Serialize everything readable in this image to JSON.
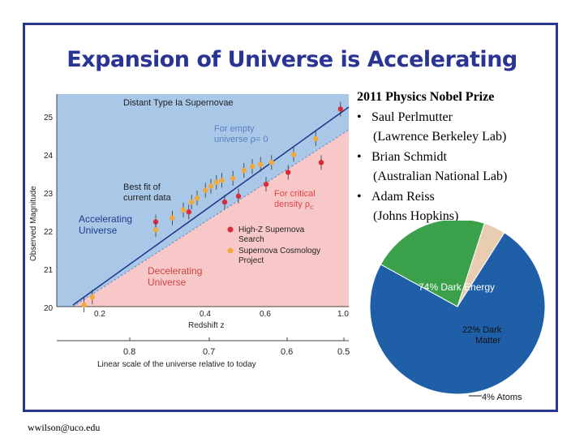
{
  "slide": {
    "title": "Expansion of Universe is Accelerating",
    "footer": "wwilson@uco.edu",
    "colors": {
      "frame": "#2a3593",
      "title": "#2a3593"
    }
  },
  "nobel": {
    "heading": "2011 Physics Nobel Prize",
    "laureates": [
      {
        "name": "Saul Perlmutter",
        "affiliation": "(Lawrence Berkeley Lab)"
      },
      {
        "name": "Brian Schmidt",
        "affiliation": "(Australian National Lab)"
      },
      {
        "name": "Adam Reiss",
        "affiliation": "(Johns Hopkins)"
      }
    ]
  },
  "chart_data": [
    {
      "type": "scatter",
      "title": "Distant Type Ia Supernovae",
      "xlabel": "Redshift z",
      "ylabel": "Observed Magnitude",
      "x_ticks": [
        "0.2",
        "0.4",
        "0.6",
        "1.0"
      ],
      "y_ticks": [
        "25",
        "24",
        "23",
        "22",
        "21",
        "20"
      ],
      "secondary_axis": {
        "label": "Linear scale of the universe relative to today",
        "ticks": [
          "0.8",
          "0.7",
          "0.6",
          "0.5"
        ]
      },
      "region_labels": {
        "accelerating": "Accelerating Universe",
        "decelerating": "Decelerating Universe",
        "empty": "For empty universe ρ= 0",
        "critical": "For critical density ρc",
        "best_fit": "Best fit of current data"
      },
      "colors": {
        "accelerating": "#a9c8e8",
        "decelerating": "#f8c8c8",
        "high_z": "#d92b3a",
        "scp": "#f2a93b"
      },
      "series": [
        {
          "name": "High-Z Supernova Search",
          "points": [
            [
              0.3,
              22.1
            ],
            [
              0.42,
              22.35
            ],
            [
              0.55,
              22.6
            ],
            [
              0.6,
              22.75
            ],
            [
              0.7,
              23.05
            ],
            [
              0.78,
              23.35
            ],
            [
              0.9,
              23.6
            ],
            [
              0.97,
              24.95
            ]
          ]
        },
        {
          "name": "Supernova Cosmology Project",
          "points": [
            [
              0.04,
              20.0
            ],
            [
              0.07,
              20.2
            ],
            [
              0.3,
              21.9
            ],
            [
              0.36,
              22.2
            ],
            [
              0.4,
              22.4
            ],
            [
              0.43,
              22.6
            ],
            [
              0.45,
              22.7
            ],
            [
              0.48,
              22.9
            ],
            [
              0.5,
              23.0
            ],
            [
              0.52,
              23.1
            ],
            [
              0.54,
              23.15
            ],
            [
              0.58,
              23.2
            ],
            [
              0.62,
              23.4
            ],
            [
              0.65,
              23.5
            ],
            [
              0.68,
              23.55
            ],
            [
              0.72,
              23.6
            ],
            [
              0.8,
              23.8
            ],
            [
              0.88,
              24.2
            ]
          ]
        }
      ]
    },
    {
      "type": "pie",
      "categories": [
        "74% Dark Energy",
        "22% Dark Matter",
        "4% Atoms"
      ],
      "values": [
        74,
        22,
        4
      ],
      "colors": [
        "#1f5fa8",
        "#3aa04a",
        "#e8cdb0"
      ]
    }
  ]
}
